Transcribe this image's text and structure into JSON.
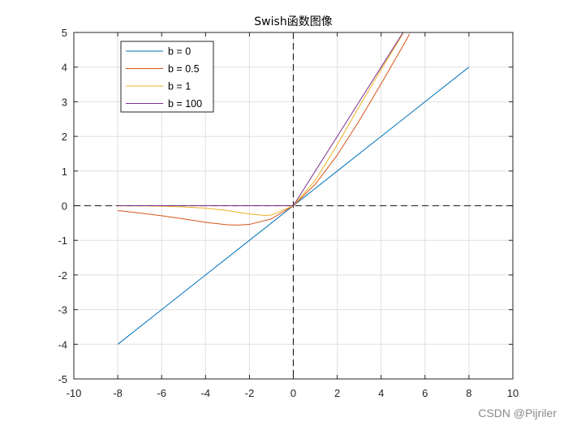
{
  "chart_data": {
    "type": "line",
    "title": "Swish函数图像",
    "xlabel": "",
    "ylabel": "",
    "xlim": [
      -10,
      10
    ],
    "ylim": [
      -5,
      5
    ],
    "xticks": [
      -10,
      -8,
      -6,
      -4,
      -2,
      0,
      2,
      4,
      6,
      8,
      10
    ],
    "yticks": [
      -5,
      -4,
      -3,
      -2,
      -1,
      0,
      1,
      2,
      3,
      4,
      5
    ],
    "xtick_labels": [
      "-10",
      "-8",
      "-6",
      "-4",
      "-2",
      "0",
      "2",
      "4",
      "6",
      "8",
      "10"
    ],
    "ytick_labels": [
      "-5",
      "-4",
      "-3",
      "-2",
      "-1",
      "0",
      "1",
      "2",
      "3",
      "4",
      "5"
    ],
    "grid": true,
    "legend_position": "top-left",
    "reference_lines": {
      "horizontal_y": 0,
      "vertical_x": 0,
      "style": "dashed",
      "color": "#000000"
    },
    "series": [
      {
        "name": "b = 0",
        "color": "#0072BD",
        "x": [
          -8,
          -6,
          -4,
          -2,
          0,
          2,
          4,
          6,
          8
        ],
        "y": [
          -4,
          -3,
          -2,
          -1,
          0,
          1,
          2,
          3,
          4
        ]
      },
      {
        "name": "b = 0.5",
        "color": "#D95319",
        "x": [
          -8,
          -7,
          -6,
          -5,
          -4,
          -3,
          -2.5,
          -2,
          -1,
          0,
          1,
          2,
          3,
          4,
          5,
          5.3
        ],
        "y": [
          -0.14,
          -0.21,
          -0.29,
          -0.38,
          -0.48,
          -0.55,
          -0.56,
          -0.54,
          -0.38,
          0,
          0.62,
          1.46,
          2.45,
          3.52,
          4.62,
          4.96
        ]
      },
      {
        "name": "b = 1",
        "color": "#EDB120",
        "x": [
          -8,
          -7,
          -6,
          -5,
          -4,
          -3,
          -2,
          -1.3,
          -1,
          0,
          1,
          2,
          3,
          4,
          5
        ],
        "y": [
          -0.003,
          -0.006,
          -0.015,
          -0.034,
          -0.07,
          -0.14,
          -0.24,
          -0.28,
          -0.27,
          0,
          0.73,
          1.76,
          2.86,
          3.93,
          4.97
        ]
      },
      {
        "name": "b = 100",
        "color": "#7E2F8E",
        "x": [
          -8,
          -1,
          -0.5,
          0,
          0.5,
          1,
          2,
          3,
          4,
          5
        ],
        "y": [
          0,
          0,
          0,
          0,
          0.5,
          1,
          2,
          3,
          4,
          5
        ]
      }
    ]
  },
  "watermark": "CSDN @Pijriler"
}
